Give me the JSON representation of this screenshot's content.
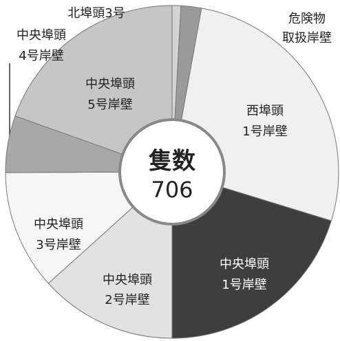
{
  "chart_data": {
    "type": "pie",
    "center_title": "隻数",
    "total": 706,
    "categories": [
      [
        "北埠頭3号"
      ],
      [
        "危険物",
        "取扱岸壁"
      ],
      [
        "西埠頭",
        "1号岸壁"
      ],
      [
        "中央埠頭",
        "1号岸壁"
      ],
      [
        "中央埠頭",
        "2号岸壁"
      ],
      [
        "中央埠頭",
        "3号岸壁"
      ],
      [
        "中央埠頭",
        "4号岸壁"
      ],
      [
        "中央埠頭",
        "5号岸壁"
      ]
    ],
    "values": [
      6,
      14,
      190,
      143,
      94,
      82,
      39,
      138
    ],
    "colors": [
      "#d4d4d4",
      "#9a9a9a",
      "#f0f0f0",
      "#3e3e3e",
      "#e2e2e2",
      "#f6f6f6",
      "#a8a8a8",
      "#c6c6c6"
    ]
  }
}
